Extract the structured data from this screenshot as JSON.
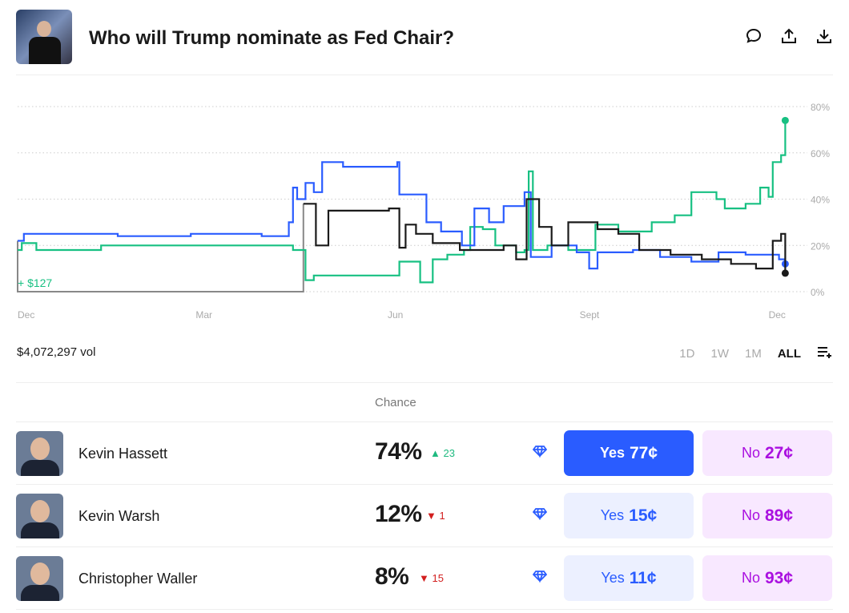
{
  "header": {
    "title": "Who will Trump nominate as Fed Chair?",
    "icons": [
      "comment-icon",
      "share-icon",
      "download-icon"
    ]
  },
  "volume": "$4,072,297 vol",
  "ranges": [
    "1D",
    "1W",
    "1M",
    "ALL"
  ],
  "selected_range": "ALL",
  "table": {
    "chance_header": "Chance"
  },
  "outcomes": [
    {
      "name": "Kevin Hassett",
      "chance": "74%",
      "change": "23",
      "direction": "up",
      "yes": "Yes",
      "yes_price": "77¢",
      "no": "No",
      "no_price": "27¢",
      "selected": true
    },
    {
      "name": "Kevin Warsh",
      "chance": "12%",
      "change": "1",
      "direction": "down",
      "yes": "Yes",
      "yes_price": "15¢",
      "no": "No",
      "no_price": "89¢"
    },
    {
      "name": "Christopher Waller",
      "chance": "8%",
      "change": "15",
      "direction": "down",
      "yes": "Yes",
      "yes_price": "11¢",
      "no": "No",
      "no_price": "93¢"
    }
  ],
  "colors": {
    "hassett": "#17c082",
    "warsh": "#2a5cff",
    "waller": "#1a1a1a",
    "position": "#888888",
    "up": "#1fba80",
    "down": "#d21e1e"
  },
  "chart_data": {
    "type": "line",
    "x_tick_labels": [
      "Dec",
      "Mar",
      "Jun",
      "Sept",
      "Dec"
    ],
    "x_ticks": [
      "2024-12-01",
      "2025-03-01",
      "2025-06-01",
      "2025-09-01",
      "2025-12-01"
    ],
    "xlim": [
      "2024-12-01",
      "2025-12-05"
    ],
    "y_tick_labels": [
      "80%",
      "60%",
      "40%",
      "20%",
      "0%"
    ],
    "ylim": [
      0,
      80
    ],
    "grid": true,
    "position_label": "+ $127",
    "series": [
      {
        "key": "hassett",
        "points": [
          [
            "2024-12-01",
            18
          ],
          [
            "2024-12-03",
            21
          ],
          [
            "2024-12-10",
            18
          ],
          [
            "2025-01-10",
            20
          ],
          [
            "2025-04-08",
            20
          ],
          [
            "2025-04-12",
            18
          ],
          [
            "2025-04-17",
            18
          ],
          [
            "2025-04-18",
            5
          ],
          [
            "2025-04-22",
            7
          ],
          [
            "2025-05-30",
            7
          ],
          [
            "2025-06-02",
            13
          ],
          [
            "2025-06-09",
            13
          ],
          [
            "2025-06-12",
            4
          ],
          [
            "2025-06-18",
            14
          ],
          [
            "2025-06-25",
            16
          ],
          [
            "2025-07-03",
            18
          ],
          [
            "2025-07-06",
            28
          ],
          [
            "2025-07-12",
            27
          ],
          [
            "2025-07-18",
            20
          ],
          [
            "2025-07-28",
            17
          ],
          [
            "2025-08-01",
            18
          ],
          [
            "2025-08-03",
            52
          ],
          [
            "2025-08-05",
            18
          ],
          [
            "2025-08-12",
            20
          ],
          [
            "2025-08-22",
            18
          ],
          [
            "2025-09-02",
            18
          ],
          [
            "2025-09-04",
            29
          ],
          [
            "2025-09-15",
            26
          ],
          [
            "2025-10-01",
            30
          ],
          [
            "2025-10-12",
            33
          ],
          [
            "2025-10-20",
            43
          ],
          [
            "2025-11-01",
            40
          ],
          [
            "2025-11-05",
            36
          ],
          [
            "2025-11-15",
            38
          ],
          [
            "2025-11-22",
            45
          ],
          [
            "2025-11-26",
            41
          ],
          [
            "2025-11-28",
            56
          ],
          [
            "2025-12-02",
            59
          ],
          [
            "2025-12-04",
            74
          ]
        ]
      },
      {
        "key": "warsh",
        "points": [
          [
            "2024-12-01",
            22
          ],
          [
            "2024-12-04",
            25
          ],
          [
            "2025-01-15",
            25
          ],
          [
            "2025-01-18",
            24
          ],
          [
            "2025-02-20",
            24
          ],
          [
            "2025-02-22",
            25
          ],
          [
            "2025-03-25",
            25
          ],
          [
            "2025-03-28",
            24
          ],
          [
            "2025-04-07",
            24
          ],
          [
            "2025-04-10",
            30
          ],
          [
            "2025-04-12",
            45
          ],
          [
            "2025-04-14",
            40
          ],
          [
            "2025-04-18",
            47
          ],
          [
            "2025-04-22",
            43
          ],
          [
            "2025-04-26",
            56
          ],
          [
            "2025-05-06",
            54
          ],
          [
            "2025-05-30",
            54
          ],
          [
            "2025-06-01",
            56
          ],
          [
            "2025-06-02",
            42
          ],
          [
            "2025-06-13",
            42
          ],
          [
            "2025-06-15",
            30
          ],
          [
            "2025-06-22",
            26
          ],
          [
            "2025-07-02",
            20
          ],
          [
            "2025-07-08",
            36
          ],
          [
            "2025-07-15",
            30
          ],
          [
            "2025-07-22",
            37
          ],
          [
            "2025-08-01",
            43
          ],
          [
            "2025-08-04",
            15
          ],
          [
            "2025-08-14",
            20
          ],
          [
            "2025-08-26",
            17
          ],
          [
            "2025-09-01",
            10
          ],
          [
            "2025-09-05",
            17
          ],
          [
            "2025-09-22",
            18
          ],
          [
            "2025-10-05",
            15
          ],
          [
            "2025-10-20",
            13
          ],
          [
            "2025-11-02",
            17
          ],
          [
            "2025-11-15",
            16
          ],
          [
            "2025-12-01",
            14
          ],
          [
            "2025-12-04",
            12
          ]
        ]
      },
      {
        "key": "waller",
        "points": [
          [
            "2025-04-17",
            38
          ],
          [
            "2025-04-22",
            38
          ],
          [
            "2025-04-23",
            20
          ],
          [
            "2025-04-28",
            20
          ],
          [
            "2025-04-29",
            35
          ],
          [
            "2025-05-25",
            35
          ],
          [
            "2025-05-28",
            36
          ],
          [
            "2025-06-01",
            36
          ],
          [
            "2025-06-02",
            19
          ],
          [
            "2025-06-05",
            29
          ],
          [
            "2025-06-10",
            25
          ],
          [
            "2025-06-18",
            21
          ],
          [
            "2025-07-01",
            18
          ],
          [
            "2025-07-12",
            18
          ],
          [
            "2025-07-22",
            20
          ],
          [
            "2025-07-28",
            14
          ],
          [
            "2025-08-02",
            40
          ],
          [
            "2025-08-08",
            28
          ],
          [
            "2025-08-14",
            20
          ],
          [
            "2025-08-22",
            30
          ],
          [
            "2025-09-05",
            27
          ],
          [
            "2025-09-15",
            25
          ],
          [
            "2025-09-25",
            18
          ],
          [
            "2025-10-10",
            16
          ],
          [
            "2025-10-25",
            14
          ],
          [
            "2025-11-08",
            12
          ],
          [
            "2025-11-20",
            10
          ],
          [
            "2025-11-28",
            22
          ],
          [
            "2025-12-02",
            25
          ],
          [
            "2025-12-04",
            8
          ]
        ]
      }
    ]
  }
}
